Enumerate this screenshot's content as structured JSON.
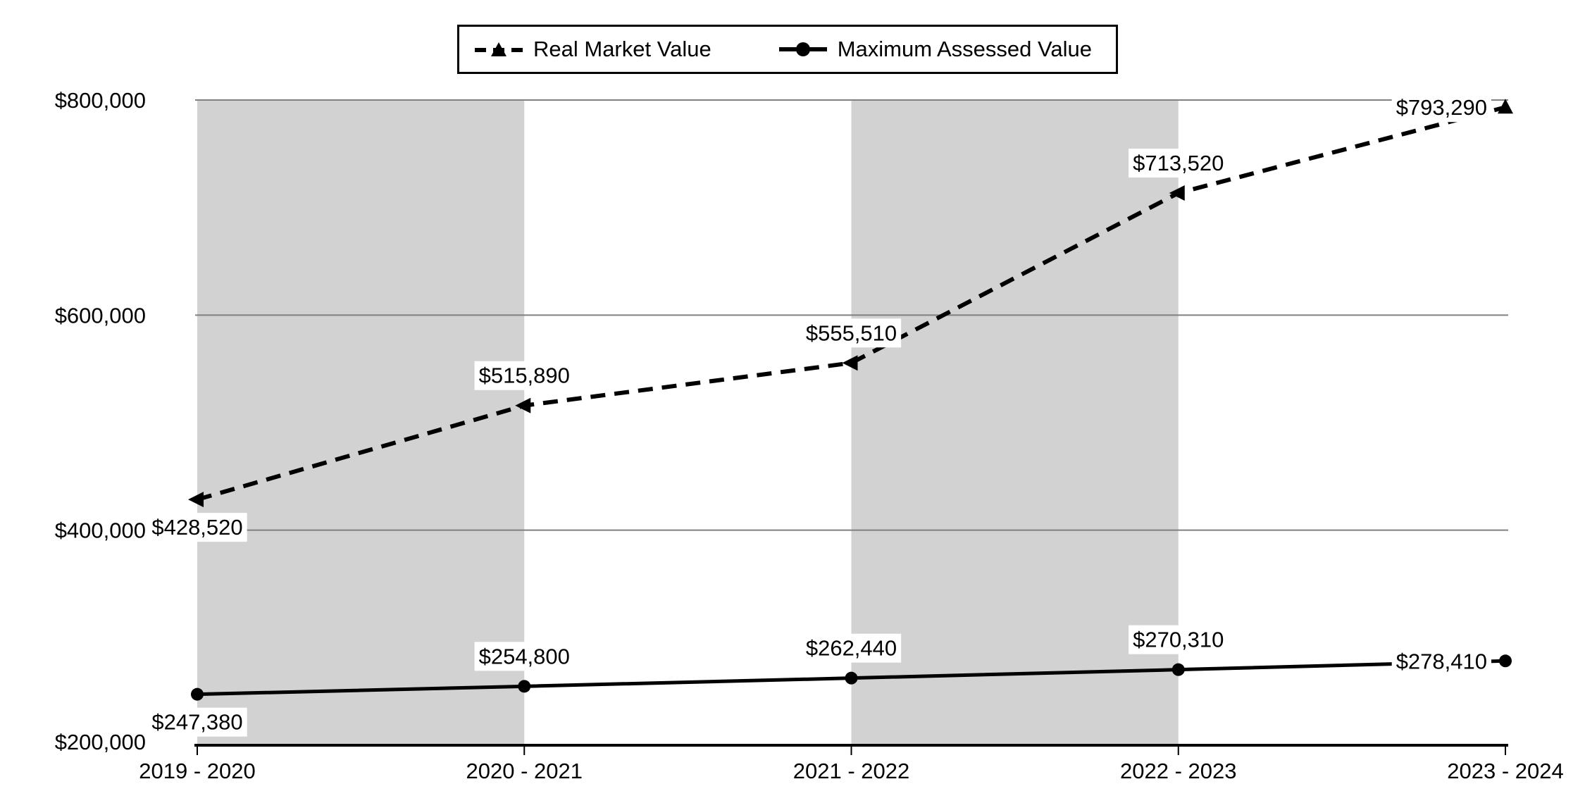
{
  "chart_data": {
    "type": "line",
    "title": "",
    "categories": [
      "2019 - 2020",
      "2020 - 2021",
      "2021 - 2022",
      "2022 - 2023",
      "2023 - 2024"
    ],
    "series": [
      {
        "name": "Real Market Value",
        "line_style": "dashed",
        "marker": "triangle",
        "color": "#000000",
        "values": [
          428520,
          515890,
          555510,
          713520,
          793290
        ],
        "labels": [
          "$428,520",
          "$515,890",
          "$555,510",
          "$713,520",
          "$793,290"
        ]
      },
      {
        "name": "Maximum Assessed Value",
        "line_style": "solid",
        "marker": "circle",
        "color": "#000000",
        "values": [
          247380,
          254800,
          262440,
          270310,
          278410
        ],
        "labels": [
          "$247,380",
          "$254,800",
          "$262,440",
          "$270,310",
          "$278,410"
        ]
      }
    ],
    "y_axis": {
      "range": [
        200000,
        800000
      ],
      "ticks": [
        200000,
        400000,
        600000,
        800000
      ],
      "tick_labels": [
        "$200,000",
        "$400,000",
        "$600,000",
        "$800,000"
      ]
    },
    "grid": "horizontal",
    "legend_position": "top",
    "shaded_year_spans": [
      [
        0,
        1
      ],
      [
        2,
        3
      ]
    ]
  },
  "colors": {
    "series": "#000000",
    "band": "#d2d2d2",
    "gridline": "#808080",
    "axis": "#000000",
    "background": "#ffffff",
    "label_background": "#ffffff"
  }
}
